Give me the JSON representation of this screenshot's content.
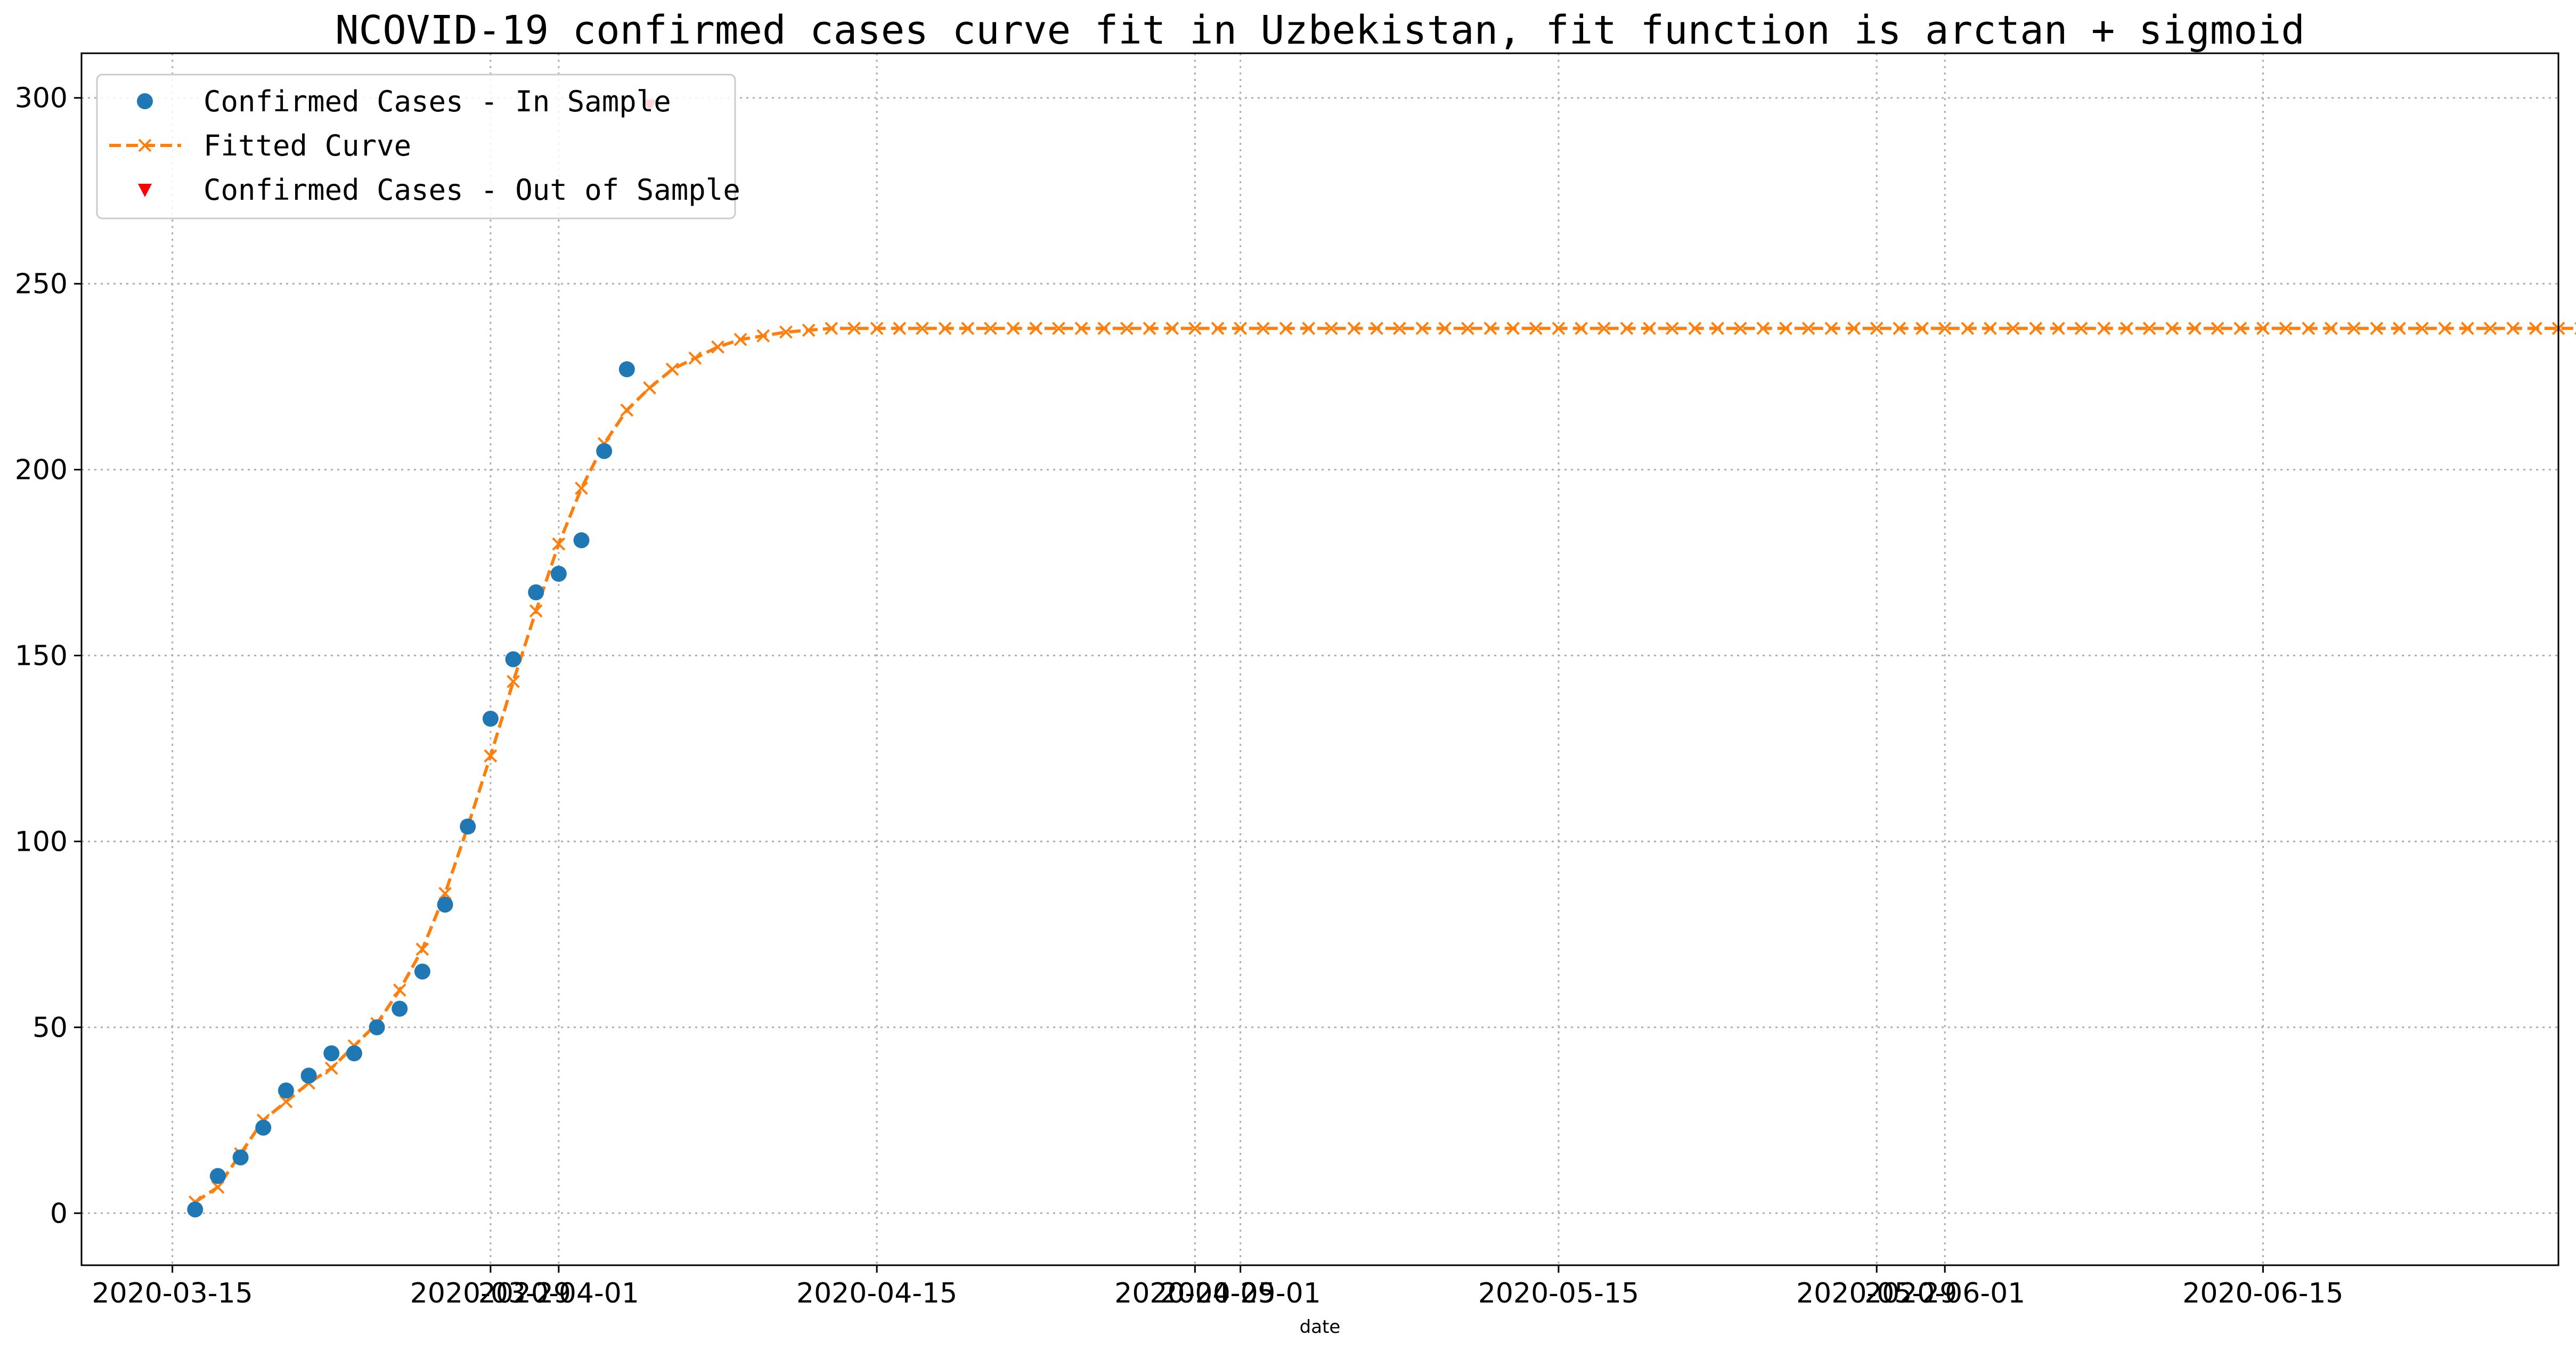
{
  "chart_data": {
    "type": "line",
    "title": "NCOVID-19 confirmed cases curve fit in Uzbekistan, fit function is arctan + sigmoid",
    "xlabel": "date",
    "ylabel": "",
    "xlim": [
      "2020-03-11",
      "2020-06-28"
    ],
    "ylim": [
      -14,
      312
    ],
    "grid": true,
    "legend_position": "top-left",
    "x_tick_labels": [
      {
        "date": "2020-03-15",
        "label": "2020-03-15"
      },
      {
        "date": "2020-03-29",
        "label": "2020-03-29"
      },
      {
        "date": "2020-04-01",
        "label": "2020-04-01"
      },
      {
        "date": "2020-04-15",
        "label": "2020-04-15"
      },
      {
        "date": "2020-04-29",
        "label": "2020-04-29"
      },
      {
        "date": "2020-05-01",
        "label": "2020-05-01"
      },
      {
        "date": "2020-05-15",
        "label": "2020-05-15"
      },
      {
        "date": "2020-05-29",
        "label": "2020-05-29"
      },
      {
        "date": "2020-06-01",
        "label": "2020-06-01"
      },
      {
        "date": "2020-06-15",
        "label": "2020-06-15"
      }
    ],
    "y_ticks": [
      0,
      50,
      100,
      150,
      200,
      250,
      300
    ],
    "series": [
      {
        "name": "Confirmed Cases - In Sample",
        "marker": "circle",
        "color": "#1f77b4",
        "x": [
          "2020-03-16",
          "2020-03-17",
          "2020-03-18",
          "2020-03-19",
          "2020-03-20",
          "2020-03-21",
          "2020-03-22",
          "2020-03-23",
          "2020-03-24",
          "2020-03-25",
          "2020-03-26",
          "2020-03-27",
          "2020-03-28",
          "2020-03-29",
          "2020-03-30",
          "2020-03-31",
          "2020-04-01",
          "2020-04-02",
          "2020-04-03",
          "2020-04-04"
        ],
        "values": [
          1,
          10,
          15,
          23,
          33,
          37,
          43,
          43,
          50,
          55,
          65,
          83,
          104,
          133,
          149,
          167,
          172,
          181,
          205,
          227
        ]
      },
      {
        "name": "Fitted Curve",
        "marker": "x",
        "line": "dashed",
        "color": "#ff7f0e",
        "start": "2020-03-16",
        "values": [
          3,
          7,
          16,
          25,
          30,
          35,
          39,
          45,
          51,
          60,
          71,
          86,
          104,
          123,
          143,
          162,
          180,
          195,
          207,
          216,
          222,
          227,
          230,
          233,
          235,
          236,
          237,
          237.5,
          238,
          238,
          238,
          238,
          238,
          238,
          238,
          238,
          238,
          238,
          238,
          238,
          238,
          238,
          238,
          238,
          238,
          238,
          238,
          238,
          238,
          238,
          238,
          238,
          238,
          238,
          238,
          238,
          238,
          238,
          238,
          238,
          238,
          238,
          238,
          238,
          238,
          238,
          238,
          238,
          238,
          238,
          238,
          238,
          238,
          238,
          238,
          238,
          238,
          238,
          238,
          238,
          238,
          238,
          238,
          238,
          238,
          238,
          238,
          238,
          238,
          238,
          238,
          238,
          238,
          238,
          238,
          238,
          238,
          238,
          238,
          238,
          238,
          238,
          238,
          238,
          238,
          238
        ]
      },
      {
        "name": "Confirmed Cases - Out of Sample",
        "marker": "triangle-down",
        "color": "#ff0000",
        "x": [
          "2020-04-05"
        ],
        "values": [
          298
        ]
      }
    ]
  }
}
